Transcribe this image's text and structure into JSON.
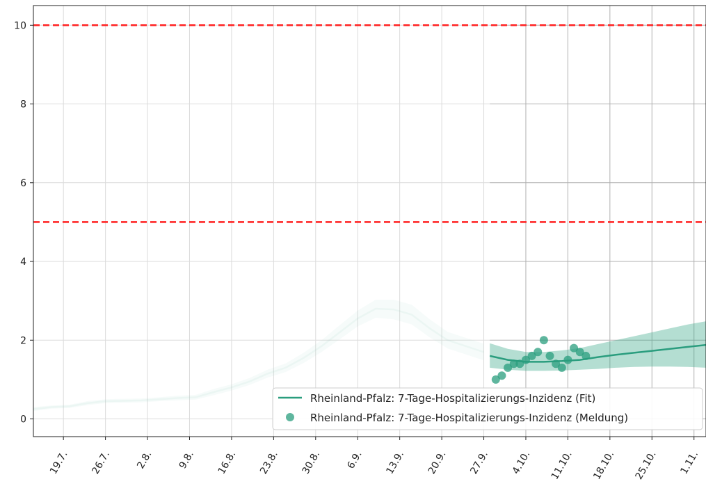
{
  "chart_data": {
    "type": "line",
    "title": "",
    "xlabel": "",
    "ylabel": "",
    "ylim": [
      -0.45,
      10.5
    ],
    "y_ticks": [
      0,
      2,
      4,
      6,
      8,
      10
    ],
    "x_ticks": [
      {
        "x": "2021-07-19",
        "label": "19.7."
      },
      {
        "x": "2021-07-26",
        "label": "26.7."
      },
      {
        "x": "2021-08-02",
        "label": "2.8."
      },
      {
        "x": "2021-08-09",
        "label": "9.8."
      },
      {
        "x": "2021-08-16",
        "label": "16.8."
      },
      {
        "x": "2021-08-23",
        "label": "23.8."
      },
      {
        "x": "2021-08-30",
        "label": "30.8."
      },
      {
        "x": "2021-09-06",
        "label": "6.9."
      },
      {
        "x": "2021-09-13",
        "label": "13.9."
      },
      {
        "x": "2021-09-20",
        "label": "20.9."
      },
      {
        "x": "2021-09-27",
        "label": "27.9."
      },
      {
        "x": "2021-10-04",
        "label": "4.10."
      },
      {
        "x": "2021-10-11",
        "label": "11.10."
      },
      {
        "x": "2021-10-18",
        "label": "18.10."
      },
      {
        "x": "2021-10-25",
        "label": "25.10."
      },
      {
        "x": "2021-11-01",
        "label": "1.11."
      }
    ],
    "xlim": [
      "2021-07-14",
      "2021-11-03"
    ],
    "grid": true,
    "legend_placement": "lower-right",
    "colors": {
      "fit": "#2a9d7e",
      "band": "#3aa88a",
      "points": "#2a9d7e",
      "threshold": "#ff2020"
    },
    "thresholds": [
      5,
      10
    ],
    "series": [
      {
        "name": "Rheinland-Pfalz: 7-Tage-Hospitalizierungs-Inzidenz (Fit)",
        "role": "fit-past",
        "x": [
          "2021-07-14",
          "2021-07-17",
          "2021-07-20",
          "2021-07-23",
          "2021-07-26",
          "2021-07-29",
          "2021-08-01",
          "2021-08-04",
          "2021-08-07",
          "2021-08-10",
          "2021-08-13",
          "2021-08-16",
          "2021-08-19",
          "2021-08-22",
          "2021-08-25",
          "2021-08-28",
          "2021-08-31",
          "2021-09-03",
          "2021-09-06",
          "2021-09-09",
          "2021-09-12",
          "2021-09-15",
          "2021-09-18",
          "2021-09-21",
          "2021-09-24",
          "2021-09-27"
        ],
        "y": [
          0.25,
          0.3,
          0.32,
          0.4,
          0.45,
          0.46,
          0.47,
          0.5,
          0.53,
          0.55,
          0.68,
          0.8,
          0.95,
          1.15,
          1.3,
          1.55,
          1.85,
          2.2,
          2.55,
          2.8,
          2.78,
          2.65,
          2.3,
          2.0,
          1.85,
          1.7
        ],
        "lower": [
          0.2,
          0.26,
          0.28,
          0.35,
          0.4,
          0.41,
          0.42,
          0.45,
          0.47,
          0.49,
          0.6,
          0.72,
          0.86,
          1.05,
          1.19,
          1.42,
          1.7,
          2.02,
          2.35,
          2.57,
          2.53,
          2.4,
          2.07,
          1.79,
          1.64,
          1.49
        ],
        "upper": [
          0.3,
          0.34,
          0.36,
          0.45,
          0.5,
          0.51,
          0.52,
          0.55,
          0.59,
          0.61,
          0.76,
          0.88,
          1.04,
          1.25,
          1.41,
          1.68,
          2.0,
          2.38,
          2.75,
          3.03,
          3.03,
          2.9,
          2.53,
          2.21,
          2.06,
          1.91
        ]
      },
      {
        "name": "Rheinland-Pfalz: 7-Tage-Hospitalizierungs-Inzidenz (Fit)",
        "role": "fit-current",
        "x": [
          "2021-09-28",
          "2021-10-01",
          "2021-10-04",
          "2021-10-07",
          "2021-10-10",
          "2021-10-13",
          "2021-10-16",
          "2021-10-19",
          "2021-10-22",
          "2021-10-25",
          "2021-10-28",
          "2021-10-31",
          "2021-11-03"
        ],
        "y": [
          1.6,
          1.5,
          1.45,
          1.45,
          1.47,
          1.5,
          1.57,
          1.63,
          1.68,
          1.73,
          1.78,
          1.83,
          1.88
        ],
        "lower": [
          1.3,
          1.25,
          1.22,
          1.22,
          1.23,
          1.25,
          1.27,
          1.3,
          1.32,
          1.33,
          1.33,
          1.32,
          1.3
        ],
        "upper": [
          1.92,
          1.78,
          1.7,
          1.7,
          1.74,
          1.8,
          1.9,
          2.0,
          2.1,
          2.2,
          2.3,
          2.4,
          2.48
        ]
      },
      {
        "name": "Rheinland-Pfalz: 7-Tage-Hospitalizierungs-Inzidenz (Meldung)",
        "role": "points",
        "x": [
          "2021-09-29",
          "2021-09-30",
          "2021-10-01",
          "2021-10-02",
          "2021-10-03",
          "2021-10-04",
          "2021-10-05",
          "2021-10-06",
          "2021-10-07",
          "2021-10-08",
          "2021-10-09",
          "2021-10-10",
          "2021-10-11",
          "2021-10-12",
          "2021-10-13",
          "2021-10-14"
        ],
        "y": [
          1.0,
          1.1,
          1.3,
          1.4,
          1.4,
          1.5,
          1.6,
          1.7,
          2.0,
          1.6,
          1.4,
          1.3,
          1.5,
          1.8,
          1.7,
          1.6
        ]
      }
    ]
  }
}
